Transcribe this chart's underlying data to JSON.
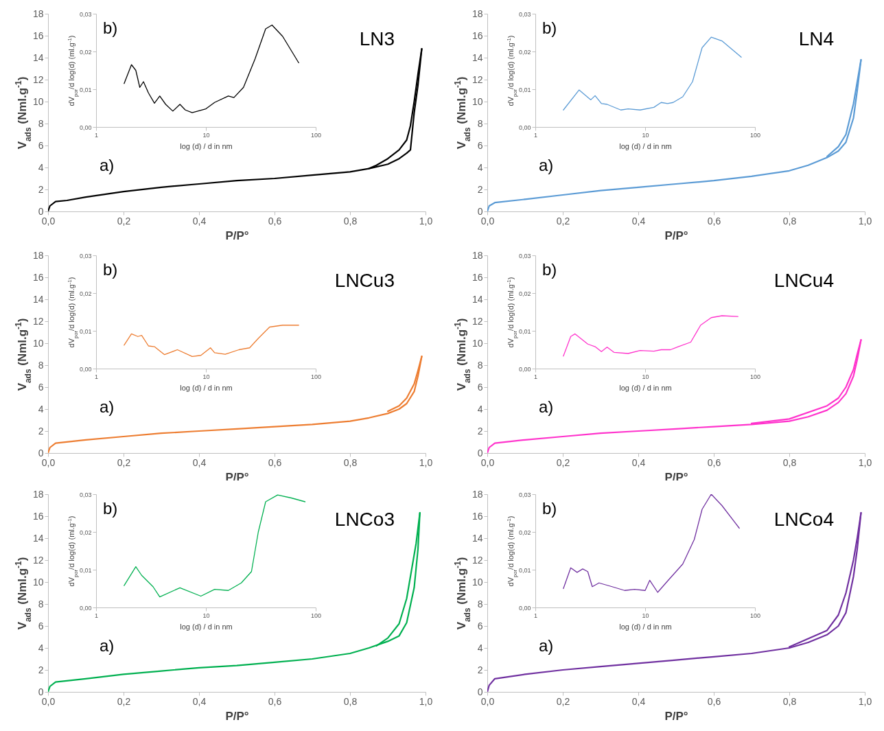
{
  "chart_data": [
    {
      "type": "line",
      "title": "LN3",
      "xlabel": "P/P°",
      "ylabel": "V$_{ads}$ (Nml.g$^{-1}$)",
      "annotations": [
        "a)"
      ],
      "xlim": [
        0,
        1
      ],
      "ylim": [
        0,
        18
      ],
      "xticks": [
        {
          "value": 0,
          "label": "0,0"
        },
        {
          "value": 0.2,
          "label": "0,2"
        },
        {
          "value": 0.4,
          "label": "0,4"
        },
        {
          "value": 0.6,
          "label": "0,6"
        },
        {
          "value": 0.8,
          "label": "0,8"
        },
        {
          "value": 1,
          "label": "1,0"
        }
      ],
      "yticks": [
        0,
        2,
        4,
        6,
        8,
        10,
        12,
        14,
        16,
        18
      ],
      "series": [
        {
          "color": "#000000",
          "x": [
            0,
            0.005,
            0.02,
            0.05,
            0.1,
            0.2,
            0.3,
            0.4,
            0.5,
            0.6,
            0.7,
            0.8,
            0.85,
            0.9,
            0.93,
            0.95,
            0.96,
            0.97,
            0.98,
            0.99
          ],
          "values": [
            0,
            0.5,
            0.9,
            1.0,
            1.3,
            1.8,
            2.2,
            2.5,
            2.8,
            3.0,
            3.3,
            3.6,
            3.9,
            4.3,
            4.8,
            5.3,
            5.6,
            9.0,
            11.5,
            14.8
          ]
        },
        {
          "color": "#000000",
          "x": [
            0.99,
            0.98,
            0.97,
            0.96,
            0.95,
            0.93,
            0.9,
            0.87,
            0.85
          ],
          "values": [
            14.8,
            12.5,
            10.0,
            7.8,
            6.5,
            5.6,
            4.8,
            4.2,
            3.9
          ]
        }
      ]
    },
    {
      "type": "line",
      "log": "x",
      "annotations": [
        "b)"
      ],
      "xlabel": "log (d)  / d in nm",
      "ylabel": "dV$_{por}$/d log(d)  (ml.g$^{-1}$)",
      "xlim": [
        1,
        100
      ],
      "ylim": [
        0,
        0.03
      ],
      "xticks": [
        1,
        10,
        100
      ],
      "yticks": [
        {
          "value": 0,
          "label": "0,00"
        },
        {
          "value": 0.01,
          "label": "0,01"
        },
        {
          "value": 0.02,
          "label": "0,02"
        },
        {
          "value": 0.03,
          "label": "0,03"
        }
      ],
      "series": [
        {
          "color": "#000000",
          "x": [
            1.8,
            2.1,
            2.3,
            2.5,
            2.7,
            3.0,
            3.4,
            3.8,
            4.3,
            5.0,
            5.8,
            6.5,
            7.5,
            10,
            12,
            16,
            18,
            22,
            28,
            35,
            40,
            50,
            70
          ],
          "values": [
            0.0115,
            0.0165,
            0.015,
            0.0105,
            0.012,
            0.009,
            0.0063,
            0.0082,
            0.006,
            0.0042,
            0.006,
            0.0045,
            0.0038,
            0.0048,
            0.0065,
            0.0082,
            0.0078,
            0.0105,
            0.018,
            0.026,
            0.027,
            0.024,
            0.017
          ]
        }
      ]
    },
    {
      "type": "line",
      "title": "LN4",
      "xlabel": "P/P°",
      "ylabel": "V$_{ads}$ (Nml.g$^{-1}$)",
      "annotations": [
        "a)"
      ],
      "xlim": [
        0,
        1
      ],
      "ylim": [
        0,
        18
      ],
      "xticks": [
        {
          "value": 0,
          "label": "0,0"
        },
        {
          "value": 0.2,
          "label": "0,2"
        },
        {
          "value": 0.4,
          "label": "0,4"
        },
        {
          "value": 0.6,
          "label": "0,6"
        },
        {
          "value": 0.8,
          "label": "0,8"
        },
        {
          "value": 1,
          "label": "1,0"
        }
      ],
      "yticks": [
        0,
        2,
        4,
        6,
        8,
        10,
        12,
        14,
        16,
        18
      ],
      "series": [
        {
          "color": "#5b9bd5",
          "x": [
            0,
            0.005,
            0.02,
            0.1,
            0.2,
            0.3,
            0.4,
            0.5,
            0.6,
            0.7,
            0.8,
            0.85,
            0.9,
            0.93,
            0.95,
            0.97,
            0.98,
            0.99
          ],
          "values": [
            0,
            0.5,
            0.8,
            1.1,
            1.5,
            1.9,
            2.2,
            2.5,
            2.8,
            3.2,
            3.7,
            4.2,
            4.9,
            5.5,
            6.3,
            8.5,
            11.0,
            13.8
          ]
        },
        {
          "color": "#5b9bd5",
          "x": [
            0.99,
            0.98,
            0.97,
            0.95,
            0.93,
            0.9
          ],
          "values": [
            13.8,
            11.8,
            9.8,
            7.0,
            5.9,
            5.0
          ]
        }
      ]
    },
    {
      "type": "line",
      "log": "x",
      "annotations": [
        "b)"
      ],
      "xlabel": "log (d)  / d in nm",
      "ylabel": "dV$_{por}$/d log(d)  (ml.g$^{-1}$)",
      "xlim": [
        1,
        100
      ],
      "ylim": [
        0,
        0.03
      ],
      "xticks": [
        1,
        10,
        100
      ],
      "yticks": [
        {
          "value": 0,
          "label": "0,00"
        },
        {
          "value": 0.01,
          "label": "0,01"
        },
        {
          "value": 0.02,
          "label": "0,02"
        },
        {
          "value": 0.03,
          "label": "0,03"
        }
      ],
      "series": [
        {
          "color": "#5b9bd5",
          "x": [
            1.8,
            2.5,
            3.2,
            3.5,
            4,
            4.5,
            6,
            7,
            9,
            12,
            14,
            16,
            18,
            22,
            27,
            33,
            40,
            50,
            75
          ],
          "values": [
            0.0045,
            0.0098,
            0.0072,
            0.0083,
            0.0062,
            0.006,
            0.0045,
            0.0048,
            0.0045,
            0.0052,
            0.0065,
            0.0062,
            0.0065,
            0.008,
            0.012,
            0.021,
            0.0238,
            0.0228,
            0.0185
          ]
        }
      ]
    },
    {
      "type": "line",
      "title": "LNCu3",
      "xlabel": "P/P°",
      "ylabel": "V$_{ads}$ (Nml.g$^{-1}$)",
      "annotations": [
        "a)"
      ],
      "xlim": [
        0,
        1
      ],
      "ylim": [
        0,
        18
      ],
      "xticks": [
        {
          "value": 0,
          "label": "0,0"
        },
        {
          "value": 0.2,
          "label": "0,2"
        },
        {
          "value": 0.4,
          "label": "0,4"
        },
        {
          "value": 0.6,
          "label": "0,6"
        },
        {
          "value": 0.8,
          "label": "0,8"
        },
        {
          "value": 1,
          "label": "1,0"
        }
      ],
      "yticks": [
        0,
        2,
        4,
        6,
        8,
        10,
        12,
        14,
        16,
        18
      ],
      "series": [
        {
          "color": "#ed7d31",
          "x": [
            0,
            0.005,
            0.02,
            0.1,
            0.2,
            0.3,
            0.4,
            0.5,
            0.6,
            0.7,
            0.8,
            0.85,
            0.9,
            0.93,
            0.95,
            0.97,
            0.98,
            0.99
          ],
          "values": [
            0,
            0.5,
            0.9,
            1.2,
            1.5,
            1.8,
            2.0,
            2.2,
            2.4,
            2.6,
            2.9,
            3.2,
            3.6,
            4.0,
            4.5,
            5.6,
            7.0,
            8.8
          ]
        },
        {
          "color": "#ed7d31",
          "x": [
            0.99,
            0.98,
            0.97,
            0.95,
            0.93,
            0.9
          ],
          "values": [
            8.8,
            7.5,
            6.3,
            5.0,
            4.3,
            3.8
          ]
        }
      ]
    },
    {
      "type": "line",
      "log": "x",
      "annotations": [
        "b)"
      ],
      "xlabel": "log (d)  / d in nm",
      "ylabel": "dV$_{por}$/d log(d)  (ml.g$^{-1}$)",
      "xlim": [
        1,
        100
      ],
      "ylim": [
        0,
        0.03
      ],
      "xticks": [
        1,
        10,
        100
      ],
      "yticks": [
        {
          "value": 0,
          "label": "0,00"
        },
        {
          "value": 0.01,
          "label": "0,01"
        },
        {
          "value": 0.02,
          "label": "0,02"
        },
        {
          "value": 0.03,
          "label": "0,03"
        }
      ],
      "series": [
        {
          "color": "#ed7d31",
          "x": [
            1.8,
            2.1,
            2.4,
            2.6,
            3,
            3.4,
            4.2,
            5.5,
            7.5,
            9,
            11,
            12,
            15,
            20,
            25,
            30,
            38,
            50,
            70
          ],
          "values": [
            0.0062,
            0.0092,
            0.0085,
            0.0088,
            0.006,
            0.0058,
            0.0037,
            0.005,
            0.0032,
            0.0035,
            0.0055,
            0.0042,
            0.0038,
            0.005,
            0.0055,
            0.008,
            0.011,
            0.0115,
            0.0115
          ]
        }
      ]
    },
    {
      "type": "line",
      "title": "LNCu4",
      "xlabel": "P/P°",
      "ylabel": "V$_{ads}$ (Nml.g$^{-1}$)",
      "annotations": [
        "a)"
      ],
      "xlim": [
        0,
        1
      ],
      "ylim": [
        0,
        18
      ],
      "xticks": [
        {
          "value": 0,
          "label": "0,0"
        },
        {
          "value": 0.2,
          "label": "0,2"
        },
        {
          "value": 0.4,
          "label": "0,4"
        },
        {
          "value": 0.6,
          "label": "0,6"
        },
        {
          "value": 0.8,
          "label": "0,8"
        },
        {
          "value": 1,
          "label": "1,0"
        }
      ],
      "yticks": [
        0,
        2,
        4,
        6,
        8,
        10,
        12,
        14,
        16,
        18
      ],
      "series": [
        {
          "color": "#ff33cc",
          "x": [
            0,
            0.005,
            0.02,
            0.1,
            0.2,
            0.3,
            0.4,
            0.5,
            0.6,
            0.7,
            0.8,
            0.85,
            0.9,
            0.93,
            0.95,
            0.97,
            0.98,
            0.99
          ],
          "values": [
            0,
            0.5,
            0.9,
            1.2,
            1.5,
            1.8,
            2.0,
            2.2,
            2.4,
            2.6,
            2.9,
            3.3,
            3.9,
            4.6,
            5.4,
            7.0,
            8.5,
            10.3
          ]
        },
        {
          "color": "#ff33cc",
          "x": [
            0.99,
            0.98,
            0.97,
            0.95,
            0.93,
            0.9,
            0.8,
            0.7
          ],
          "values": [
            10.3,
            9.0,
            7.6,
            6.0,
            5.0,
            4.3,
            3.1,
            2.7
          ]
        }
      ]
    },
    {
      "type": "line",
      "log": "x",
      "annotations": [
        "b)"
      ],
      "xlabel": "log (d)  / d in nm",
      "ylabel": "dV$_{por}$/d log(d)  (ml.g$^{-1}$)",
      "xlim": [
        1,
        100
      ],
      "ylim": [
        0,
        0.03
      ],
      "xticks": [
        1,
        10,
        100
      ],
      "yticks": [
        {
          "value": 0,
          "label": "0,00"
        },
        {
          "value": 0.01,
          "label": "0,01"
        },
        {
          "value": 0.02,
          "label": "0,02"
        },
        {
          "value": 0.03,
          "label": "0,03"
        }
      ],
      "series": [
        {
          "color": "#ff33cc",
          "x": [
            1.8,
            2.1,
            2.3,
            3,
            3.5,
            4,
            4.5,
            5.2,
            7,
            9,
            12,
            14,
            17,
            20,
            26,
            32,
            40,
            50,
            70
          ],
          "values": [
            0.0033,
            0.0085,
            0.0092,
            0.0065,
            0.0058,
            0.0045,
            0.0057,
            0.0043,
            0.004,
            0.0048,
            0.0046,
            0.005,
            0.005,
            0.0058,
            0.007,
            0.0115,
            0.0135,
            0.014,
            0.0138
          ]
        }
      ]
    },
    {
      "type": "line",
      "title": "LNCo3",
      "xlabel": "P/P°",
      "ylabel": "V$_{ads}$ (Nml.g$^{-1}$)",
      "annotations": [
        "a)"
      ],
      "xlim": [
        0,
        1
      ],
      "ylim": [
        0,
        18
      ],
      "xticks": [
        {
          "value": 0,
          "label": "0,0"
        },
        {
          "value": 0.2,
          "label": "0,2"
        },
        {
          "value": 0.4,
          "label": "0,4"
        },
        {
          "value": 0.6,
          "label": "0,6"
        },
        {
          "value": 0.8,
          "label": "0,8"
        },
        {
          "value": 1,
          "label": "1,0"
        }
      ],
      "yticks": [
        0,
        2,
        4,
        6,
        8,
        10,
        12,
        14,
        16,
        18
      ],
      "series": [
        {
          "color": "#00b050",
          "x": [
            0,
            0.005,
            0.02,
            0.1,
            0.2,
            0.3,
            0.4,
            0.5,
            0.6,
            0.7,
            0.8,
            0.85,
            0.9,
            0.93,
            0.95,
            0.97,
            0.98,
            0.985
          ],
          "values": [
            0,
            0.5,
            0.9,
            1.2,
            1.6,
            1.9,
            2.2,
            2.4,
            2.7,
            3.0,
            3.5,
            4.0,
            4.6,
            5.1,
            6.3,
            9.5,
            13.0,
            16.3
          ]
        },
        {
          "color": "#00b050",
          "x": [
            0.985,
            0.975,
            0.96,
            0.95,
            0.93,
            0.9,
            0.87
          ],
          "values": [
            16.3,
            13.5,
            10.5,
            8.5,
            6.2,
            4.9,
            4.2
          ]
        }
      ]
    },
    {
      "type": "line",
      "log": "x",
      "annotations": [
        "b)"
      ],
      "xlabel": "log (d)  / d in nm",
      "ylabel": "dV$_{por}$/d log(d)  (ml.g$^{-1}$)",
      "xlim": [
        1,
        100
      ],
      "ylim": [
        0,
        0.03
      ],
      "xticks": [
        1,
        10,
        100
      ],
      "yticks": [
        {
          "value": 0,
          "label": "0,00"
        },
        {
          "value": 0.01,
          "label": "0,01"
        },
        {
          "value": 0.02,
          "label": "0,02"
        },
        {
          "value": 0.03,
          "label": "0,03"
        }
      ],
      "series": [
        {
          "color": "#00b050",
          "x": [
            1.8,
            2.3,
            2.6,
            3.3,
            3.8,
            5.8,
            9,
            12,
            16,
            21,
            26,
            30,
            35,
            45,
            60,
            80
          ],
          "values": [
            0.0058,
            0.0108,
            0.0085,
            0.0055,
            0.0028,
            0.0052,
            0.003,
            0.0048,
            0.0045,
            0.0065,
            0.0095,
            0.02,
            0.028,
            0.0298,
            0.029,
            0.028
          ]
        }
      ]
    },
    {
      "type": "line",
      "title": "LNCo4",
      "xlabel": "P/P°",
      "ylabel": "V$_{ads}$ (Nml.g$^{-1}$)",
      "annotations": [
        "a)"
      ],
      "xlim": [
        0,
        1
      ],
      "ylim": [
        0,
        18
      ],
      "xticks": [
        {
          "value": 0,
          "label": "0,0"
        },
        {
          "value": 0.2,
          "label": "0,2"
        },
        {
          "value": 0.4,
          "label": "0,4"
        },
        {
          "value": 0.6,
          "label": "0,6"
        },
        {
          "value": 0.8,
          "label": "0,8"
        },
        {
          "value": 1,
          "label": "1,0"
        }
      ],
      "yticks": [
        0,
        2,
        4,
        6,
        8,
        10,
        12,
        14,
        16,
        18
      ],
      "series": [
        {
          "color": "#7030a0",
          "x": [
            0,
            0.005,
            0.02,
            0.1,
            0.2,
            0.3,
            0.4,
            0.5,
            0.6,
            0.7,
            0.8,
            0.85,
            0.9,
            0.93,
            0.95,
            0.97,
            0.98,
            0.99
          ],
          "values": [
            0,
            0.6,
            1.2,
            1.6,
            2.0,
            2.3,
            2.6,
            2.9,
            3.2,
            3.5,
            4.0,
            4.5,
            5.2,
            6.0,
            7.2,
            10.5,
            13.0,
            16.3
          ]
        },
        {
          "color": "#7030a0",
          "x": [
            0.99,
            0.98,
            0.97,
            0.95,
            0.93,
            0.9,
            0.8
          ],
          "values": [
            16.3,
            14.0,
            12.0,
            9.0,
            7.0,
            5.6,
            4.1
          ]
        }
      ]
    },
    {
      "type": "line",
      "log": "x",
      "annotations": [
        "b)"
      ],
      "xlabel": "log (d)  / d in nm",
      "ylabel": "dV$_{por}$/d log(d)  (ml.g$^{-1}$)",
      "xlim": [
        1,
        100
      ],
      "ylim": [
        0,
        0.03
      ],
      "xticks": [
        1,
        10,
        100
      ],
      "yticks": [
        {
          "value": 0,
          "label": "0,00"
        },
        {
          "value": 0.01,
          "label": "0,01"
        },
        {
          "value": 0.02,
          "label": "0,02"
        },
        {
          "value": 0.03,
          "label": "0,03"
        }
      ],
      "series": [
        {
          "color": "#7030a0",
          "x": [
            1.8,
            2.1,
            2.4,
            2.7,
            3.0,
            3.3,
            3.8,
            5,
            6.5,
            8,
            10,
            11,
            13,
            16,
            22,
            28,
            33,
            40,
            50,
            72
          ],
          "values": [
            0.005,
            0.0105,
            0.0093,
            0.0102,
            0.0095,
            0.0055,
            0.0065,
            0.0055,
            0.0045,
            0.0048,
            0.0045,
            0.0072,
            0.004,
            0.007,
            0.0115,
            0.018,
            0.026,
            0.03,
            0.027,
            0.021
          ]
        }
      ]
    }
  ]
}
